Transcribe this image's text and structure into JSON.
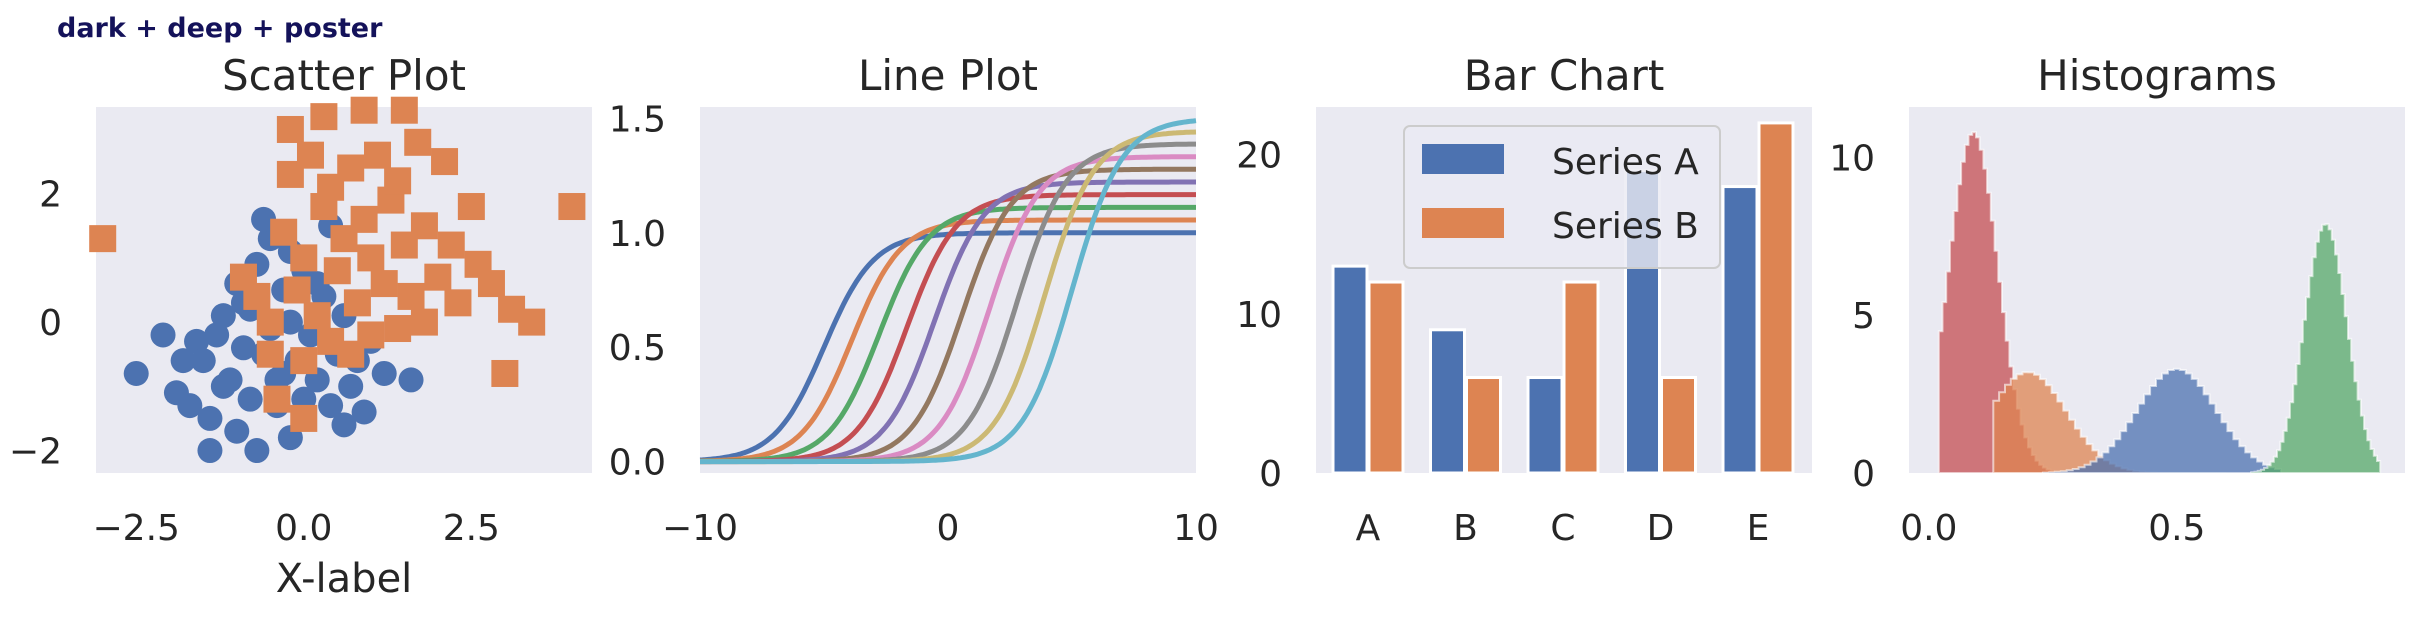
{
  "figure": {
    "suptitle": "dark + deep + poster"
  },
  "palette": {
    "background": "#eaeaf2",
    "deep": [
      "#4c72b0",
      "#dd8452",
      "#55a868",
      "#c44e52",
      "#8172b3",
      "#937860",
      "#da8bc3",
      "#8c8c8c",
      "#ccb974",
      "#64b5cd"
    ]
  },
  "chart_data": [
    {
      "type": "scatter",
      "title": "Scatter Plot",
      "xlabel": "X-label",
      "ylabel": "",
      "xlim": [
        -3.1,
        4.3
      ],
      "ylim": [
        -2.35,
        3.35
      ],
      "xticks": [
        -2.5,
        0.0,
        2.5
      ],
      "xtick_labels": [
        "−2.5",
        "0.0",
        "2.5"
      ],
      "yticks": [
        -2,
        0,
        2
      ],
      "ytick_labels": [
        "−2",
        "0",
        "2"
      ],
      "grid": false,
      "series": [
        {
          "marker": "circle",
          "color": "#4c72b0",
          "points": [
            [
              -2.5,
              -0.8
            ],
            [
              -1.9,
              -1.1
            ],
            [
              -1.6,
              -0.3
            ],
            [
              -1.5,
              -0.6
            ],
            [
              -1.4,
              -1.5
            ],
            [
              -1.4,
              -2.0
            ],
            [
              -1.3,
              -0.2
            ],
            [
              -1.2,
              0.1
            ],
            [
              -1.1,
              -0.9
            ],
            [
              -1.0,
              -1.7
            ],
            [
              -0.9,
              -0.4
            ],
            [
              -0.9,
              0.3
            ],
            [
              -0.8,
              -1.2
            ],
            [
              -0.7,
              -2.0
            ],
            [
              -0.7,
              0.9
            ],
            [
              -0.6,
              -0.5
            ],
            [
              -0.5,
              -0.1
            ],
            [
              -0.5,
              1.3
            ],
            [
              -0.4,
              -1.3
            ],
            [
              -0.3,
              -0.8
            ],
            [
              -0.3,
              0.5
            ],
            [
              -0.2,
              0.0
            ],
            [
              -0.2,
              -1.8
            ],
            [
              -0.1,
              -0.6
            ],
            [
              0.0,
              -1.2
            ],
            [
              0.0,
              0.8
            ],
            [
              0.1,
              -0.2
            ],
            [
              0.2,
              -0.9
            ],
            [
              0.3,
              0.4
            ],
            [
              0.4,
              -1.3
            ],
            [
              0.5,
              -0.5
            ],
            [
              0.6,
              0.1
            ],
            [
              0.7,
              -1.0
            ],
            [
              0.8,
              -0.6
            ],
            [
              0.9,
              -1.4
            ],
            [
              1.0,
              -0.3
            ],
            [
              1.2,
              -0.8
            ],
            [
              -1.7,
              -1.3
            ],
            [
              -1.8,
              -0.6
            ],
            [
              -0.6,
              1.6
            ],
            [
              0.4,
              1.5
            ],
            [
              -2.1,
              -0.2
            ],
            [
              -1.0,
              0.6
            ],
            [
              -0.8,
              0.2
            ],
            [
              -0.4,
              -0.9
            ],
            [
              0.2,
              0.6
            ],
            [
              0.6,
              -1.6
            ],
            [
              1.6,
              -0.9
            ],
            [
              -0.2,
              1.1
            ],
            [
              -1.2,
              -1.0
            ]
          ]
        },
        {
          "marker": "square",
          "color": "#dd8452",
          "points": [
            [
              -3.0,
              1.3
            ],
            [
              -0.9,
              0.7
            ],
            [
              -0.7,
              0.4
            ],
            [
              -0.5,
              0.0
            ],
            [
              -0.5,
              -0.5
            ],
            [
              -0.4,
              -1.2
            ],
            [
              -0.3,
              1.4
            ],
            [
              -0.2,
              3.0
            ],
            [
              -0.2,
              2.3
            ],
            [
              -0.1,
              0.5
            ],
            [
              0.0,
              -0.6
            ],
            [
              0.0,
              1.0
            ],
            [
              0.1,
              2.6
            ],
            [
              0.2,
              0.1
            ],
            [
              0.3,
              1.8
            ],
            [
              0.3,
              3.2
            ],
            [
              0.4,
              -0.3
            ],
            [
              0.4,
              2.1
            ],
            [
              0.5,
              0.8
            ],
            [
              0.6,
              1.3
            ],
            [
              0.7,
              -0.5
            ],
            [
              0.7,
              2.4
            ],
            [
              0.8,
              0.3
            ],
            [
              0.9,
              1.6
            ],
            [
              0.9,
              3.3
            ],
            [
              1.0,
              -0.2
            ],
            [
              1.0,
              1.0
            ],
            [
              1.1,
              2.6
            ],
            [
              1.2,
              0.6
            ],
            [
              1.3,
              1.9
            ],
            [
              1.4,
              -0.1
            ],
            [
              1.4,
              2.2
            ],
            [
              1.5,
              1.2
            ],
            [
              1.5,
              3.3
            ],
            [
              1.6,
              0.4
            ],
            [
              1.7,
              2.8
            ],
            [
              1.8,
              1.5
            ],
            [
              1.8,
              0.0
            ],
            [
              2.0,
              0.7
            ],
            [
              2.1,
              2.5
            ],
            [
              2.2,
              1.2
            ],
            [
              2.3,
              0.3
            ],
            [
              2.5,
              1.8
            ],
            [
              2.6,
              0.9
            ],
            [
              2.8,
              0.6
            ],
            [
              3.0,
              -0.8
            ],
            [
              3.1,
              0.2
            ],
            [
              3.4,
              0.0
            ],
            [
              4.0,
              1.8
            ],
            [
              0.0,
              -1.5
            ]
          ]
        }
      ]
    },
    {
      "type": "line",
      "title": "Line Plot",
      "xlabel": "",
      "ylabel": "",
      "xlim": [
        -10,
        10
      ],
      "ylim": [
        -0.05,
        1.55
      ],
      "xticks": [
        -10,
        0,
        10
      ],
      "xtick_labels": [
        "−10",
        "0",
        "10"
      ],
      "yticks": [
        0.0,
        0.5,
        1.0,
        1.5
      ],
      "ytick_labels": [
        "0.0",
        "0.5",
        "1.0",
        "1.5"
      ],
      "grid": false,
      "function": "sigmoid",
      "series": [
        {
          "color": "#4c72b0",
          "shift": -5.0,
          "amplitude": 1.0
        },
        {
          "color": "#dd8452",
          "shift": -3.889,
          "amplitude": 1.056
        },
        {
          "color": "#55a868",
          "shift": -2.778,
          "amplitude": 1.111
        },
        {
          "color": "#c44e52",
          "shift": -1.667,
          "amplitude": 1.167
        },
        {
          "color": "#8172b3",
          "shift": -0.556,
          "amplitude": 1.222
        },
        {
          "color": "#937860",
          "shift": 0.556,
          "amplitude": 1.278
        },
        {
          "color": "#da8bc3",
          "shift": 1.667,
          "amplitude": 1.333
        },
        {
          "color": "#8c8c8c",
          "shift": 2.778,
          "amplitude": 1.389
        },
        {
          "color": "#ccb974",
          "shift": 3.889,
          "amplitude": 1.444
        },
        {
          "color": "#64b5cd",
          "shift": 5.0,
          "amplitude": 1.5
        }
      ]
    },
    {
      "type": "bar",
      "title": "Bar Chart",
      "xlabel": "",
      "ylabel": "",
      "categories": [
        "A",
        "B",
        "C",
        "D",
        "E"
      ],
      "ylim": [
        0,
        23
      ],
      "yticks": [
        0,
        10,
        20
      ],
      "ytick_labels": [
        "0",
        "10",
        "20"
      ],
      "grid": false,
      "legend_position": "upper-center",
      "series": [
        {
          "name": "Series A",
          "color": "#4c72b0",
          "values": [
            13,
            9,
            6,
            19,
            18
          ]
        },
        {
          "name": "Series B",
          "color": "#dd8452",
          "values": [
            12,
            6,
            12,
            6,
            22
          ]
        }
      ]
    },
    {
      "type": "histogram",
      "title": "Histograms",
      "xlabel": "",
      "ylabel": "",
      "xlim": [
        -0.04,
        0.96
      ],
      "ylim": [
        0,
        11.6
      ],
      "xticks": [
        0.0,
        0.5
      ],
      "xtick_labels": [
        "0.0",
        "0.5"
      ],
      "yticks": [
        0,
        5,
        10
      ],
      "ytick_labels": [
        "0",
        "5",
        "10"
      ],
      "grid": false,
      "series": [
        {
          "color": "#c44e52",
          "peak_x": 0.09,
          "peak_density": 10.8,
          "range": [
            0.02,
            0.32
          ]
        },
        {
          "color": "#dd8452",
          "peak_x": 0.2,
          "peak_density": 3.2,
          "range": [
            0.13,
            0.6
          ]
        },
        {
          "color": "#4c72b0",
          "peak_x": 0.5,
          "peak_density": 3.3,
          "range": [
            0.23,
            0.71
          ]
        },
        {
          "color": "#55a868",
          "peak_x": 0.8,
          "peak_density": 7.9,
          "range": [
            0.65,
            0.91
          ]
        }
      ]
    }
  ]
}
